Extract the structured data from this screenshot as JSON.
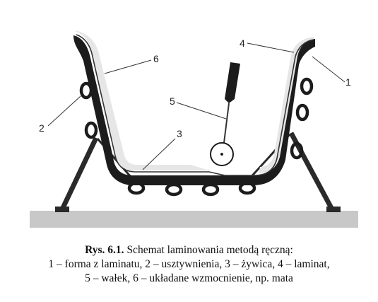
{
  "callouts": [
    {
      "num": "1",
      "label": "forma z laminatu"
    },
    {
      "num": "2",
      "label": "usztywnienia"
    },
    {
      "num": "3",
      "label": "żywica"
    },
    {
      "num": "4",
      "label": "laminat"
    },
    {
      "num": "5",
      "label": "wałek"
    },
    {
      "num": "6",
      "label": "układane wzmocnienie, np. mata"
    }
  ],
  "caption": {
    "figure_label": "Rys. 6.1.",
    "title": "Schemat laminowania metodą ręczną:",
    "line2": "1 – forma z laminatu,  2 – usztywnienia,  3 – żywica, 4 – laminat,",
    "line3": "5 – wałek, 6 – układane wzmocnienie, np. mata"
  },
  "colors": {
    "mold": "#1c1c1c",
    "reinforcement": "#e6e6e6",
    "laminate": "#333333",
    "ground": "#c8c8c8",
    "stand": "#2a2a2a"
  }
}
